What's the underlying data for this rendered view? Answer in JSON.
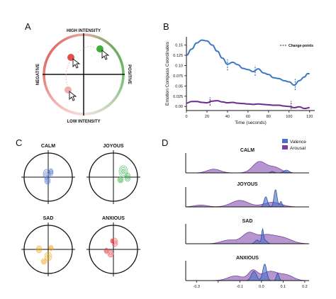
{
  "panels": {
    "a": {
      "letter": "A",
      "labels": {
        "top": "HIGH INTENSITY",
        "bottom": "LOW INTENSITY",
        "left": "NEGATIVE",
        "right": "POSITIVE"
      },
      "colors": {
        "negative": "#d9463e",
        "positive": "#3f9c35"
      }
    },
    "b": {
      "letter": "B"
    },
    "c": {
      "letter": "C",
      "quadrants": [
        {
          "label": "CALM",
          "color": "#4a6fd1"
        },
        {
          "label": "JOYOUS",
          "color": "#38b24a"
        },
        {
          "label": "SAD",
          "color": "#f0a818"
        },
        {
          "label": "ANXIOUS",
          "color": "#e8414a"
        }
      ]
    },
    "d": {
      "letter": "D"
    }
  },
  "chart_data": [
    {
      "type": "line",
      "panel": "B",
      "xlabel": "Time (seconds)",
      "ylabel": "Emotion Compass Coordinates",
      "xlim": [
        0,
        125
      ],
      "ylim": [
        -0.01,
        0.17
      ],
      "xticks": [
        0,
        20,
        40,
        60,
        80,
        100,
        120
      ],
      "yticks": [
        0.0,
        0.025,
        0.05,
        0.075,
        0.1,
        0.125,
        0.15
      ],
      "ytick_labels": [
        "0.00",
        "0.025",
        "0.05",
        "0.075",
        "0.10",
        "0.125",
        "0.15"
      ],
      "legend": "Change-points",
      "legend_position": "top-right",
      "series": [
        {
          "color": "#3b78c4",
          "x": [
            0,
            5,
            10,
            15,
            20,
            25,
            30,
            35,
            40,
            45,
            50,
            55,
            60,
            65,
            70,
            75,
            80,
            85,
            90,
            95,
            100,
            105,
            110,
            115,
            118,
            120
          ],
          "y": [
            0.125,
            0.14,
            0.155,
            0.162,
            0.16,
            0.15,
            0.135,
            0.118,
            0.103,
            0.108,
            0.102,
            0.093,
            0.09,
            0.085,
            0.092,
            0.082,
            0.078,
            0.07,
            0.068,
            0.063,
            0.06,
            0.052,
            0.063,
            0.072,
            0.08,
            0.08
          ]
        },
        {
          "color": "#6a2a8e",
          "x": [
            0,
            5,
            10,
            15,
            20,
            25,
            30,
            35,
            40,
            45,
            50,
            55,
            60,
            65,
            70,
            75,
            80,
            85,
            90,
            95,
            100,
            105,
            110,
            115,
            120
          ],
          "y": [
            0.008,
            0.012,
            0.012,
            0.01,
            0.009,
            0.013,
            0.014,
            0.011,
            0.009,
            0.01,
            0.008,
            0.007,
            0.006,
            0.005,
            0.006,
            0.005,
            0.004,
            0.003,
            0.003,
            0.001,
            0.0,
            -0.003,
            -0.001,
            -0.005,
            -0.003
          ]
        }
      ],
      "change_points": [
        {
          "x": 40,
          "y": [
            0.088,
            0.115
          ],
          "color": "#3b78c4"
        },
        {
          "x": 67,
          "y": [
            0.075,
            0.1
          ],
          "color": "#3b78c4"
        },
        {
          "x": 106,
          "y": [
            0.04,
            0.067
          ],
          "color": "#3b78c4"
        },
        {
          "x": 23,
          "y": [
            0.002,
            0.022
          ],
          "color": "#6a2a8e"
        },
        {
          "x": 102,
          "y": [
            -0.007,
            0.013
          ],
          "color": "#6a2a8e"
        }
      ]
    },
    {
      "type": "area",
      "panel": "D",
      "xlim": [
        -0.35,
        0.22
      ],
      "xticks": [
        -0.3,
        -0.2,
        -0.1,
        0.0,
        0.1,
        0.2
      ],
      "xtick_labels": [
        "-0.3",
        "",
        "-0.1",
        "0.0",
        "0.1",
        "0.2"
      ],
      "legend": [
        "Valence",
        "Arousal"
      ],
      "legend_position": "top-right",
      "series_colors": {
        "valence": "#4a6fc9",
        "arousal": "#7a3fa6"
      },
      "facets": [
        {
          "title": "CALM",
          "valence": [
            [
              -0.02,
              0.004,
              0.012
            ],
            [
              0.05,
              0.008,
              0.08
            ],
            [
              0.115,
              0.012,
              0.15
            ]
          ],
          "arousal": [
            [
              -0.22,
              0.03,
              0.2
            ],
            [
              -0.01,
              0.03,
              0.6
            ],
            [
              0.06,
              0.03,
              0.3
            ]
          ]
        },
        {
          "title": "JOYOUS",
          "valence": [
            [
              0.02,
              0.008,
              0.55
            ],
            [
              0.065,
              0.007,
              0.95
            ],
            [
              0.09,
              0.005,
              0.3
            ]
          ],
          "arousal": [
            [
              -0.28,
              0.03,
              0.1
            ],
            [
              -0.1,
              0.04,
              0.35
            ],
            [
              0.05,
              0.04,
              0.25
            ]
          ]
        },
        {
          "title": "SAD",
          "valence": [
            [
              -0.02,
              0.01,
              0.2
            ],
            [
              0.005,
              0.004,
              0.7
            ],
            [
              0.015,
              0.01,
              0.2
            ]
          ],
          "arousal": [
            [
              -0.15,
              0.035,
              0.2
            ],
            [
              -0.06,
              0.03,
              0.55
            ],
            [
              0.02,
              0.04,
              0.45
            ],
            [
              0.1,
              0.04,
              0.3
            ]
          ]
        },
        {
          "title": "ANXIOUS",
          "valence": [
            [
              -0.035,
              0.012,
              0.5
            ],
            [
              0.015,
              0.009,
              0.9
            ],
            [
              0.075,
              0.006,
              0.4
            ]
          ],
          "arousal": [
            [
              -0.12,
              0.035,
              0.25
            ],
            [
              -0.04,
              0.02,
              0.5
            ],
            [
              0.04,
              0.04,
              0.5
            ],
            [
              0.12,
              0.03,
              0.25
            ]
          ]
        }
      ]
    }
  ]
}
